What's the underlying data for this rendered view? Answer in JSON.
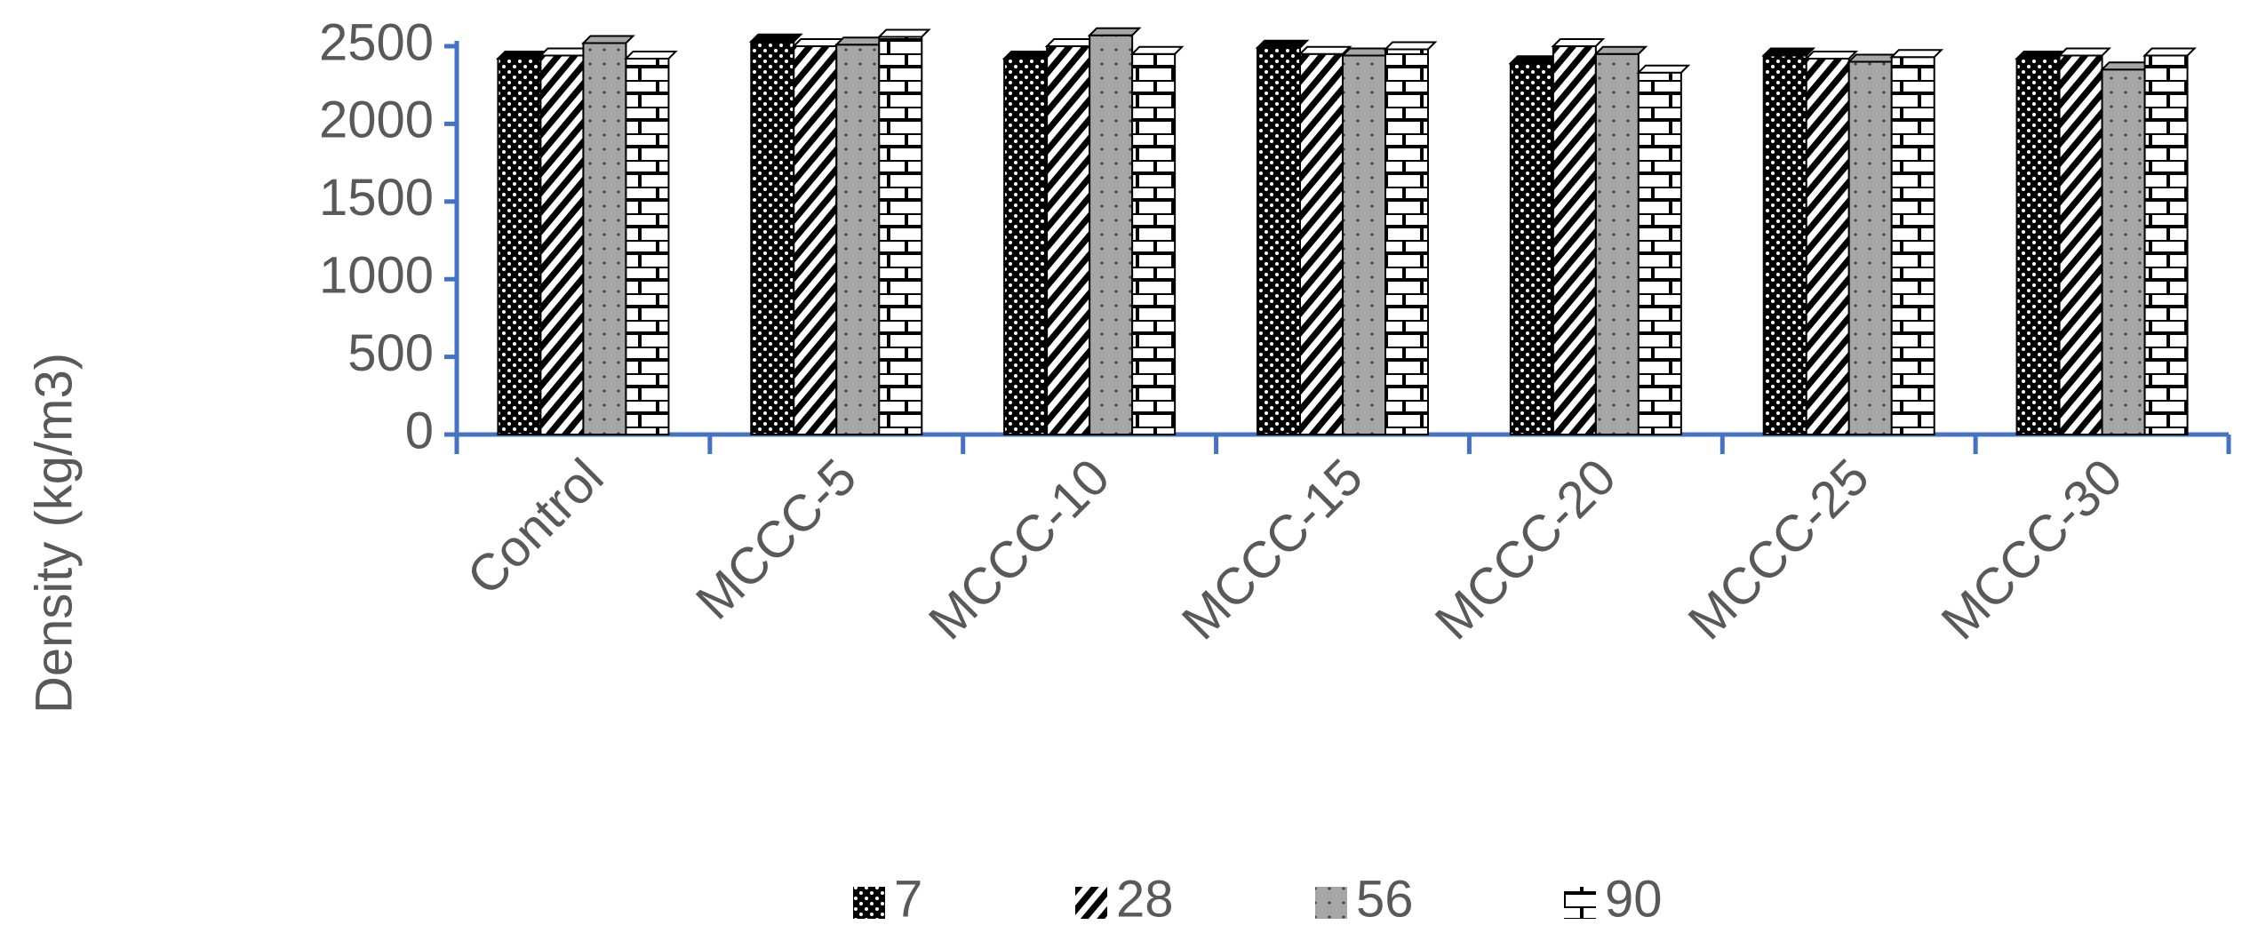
{
  "chart_data": {
    "type": "bar",
    "y_label": "Density (kg/m3)",
    "categories": [
      "Control",
      "MCCC-5",
      "MCCC-10",
      "MCCC-15",
      "MCCC-20",
      "MCCC-25",
      "MCCC-30"
    ],
    "series": [
      {
        "name": "7",
        "color": "#000000",
        "values": [
          2420,
          2530,
          2420,
          2490,
          2390,
          2440,
          2420
        ]
      },
      {
        "name": "28",
        "color": "#ffffff",
        "values": [
          2440,
          2500,
          2500,
          2450,
          2500,
          2420,
          2440
        ]
      },
      {
        "name": "56",
        "color": "#a6a6a6",
        "values": [
          2520,
          2510,
          2570,
          2440,
          2450,
          2400,
          2350
        ]
      },
      {
        "name": "90",
        "color": "#ffffff",
        "values": [
          2420,
          2560,
          2450,
          2480,
          2330,
          2430,
          2440
        ]
      }
    ],
    "ylim": [
      0,
      2500
    ],
    "yticks": [
      0,
      500,
      1000,
      1500,
      2000,
      2500
    ],
    "legend": "bottom"
  }
}
